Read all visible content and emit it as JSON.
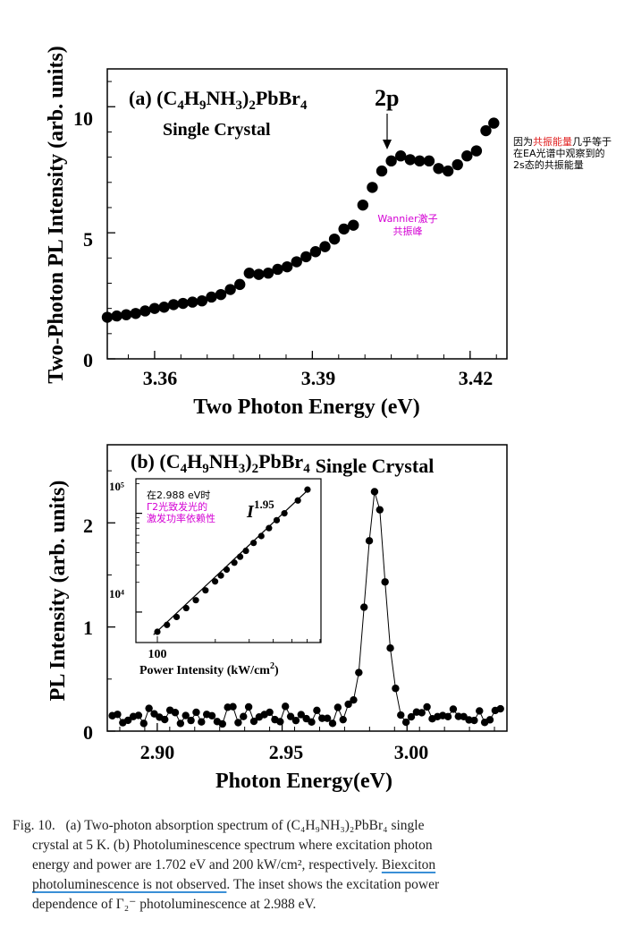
{
  "chart_data": [
    {
      "type": "scatter",
      "title": "(a) (C4H9NH3)2PbBr4",
      "subtitle": "Single Crystal",
      "xlabel": "Two Photon Energy (eV)",
      "ylabel": "Two-Photon PL Intensity (arb. units)",
      "xlim": [
        3.351,
        3.427
      ],
      "ylim": [
        0,
        11.5
      ],
      "xticks": [
        "3.36",
        "3.39",
        "3.42"
      ],
      "yticks": [
        "0",
        "5",
        "10"
      ],
      "peak_label": "2p",
      "annotation_right": [
        "因为",
        "共振能量",
        "几乎等于",
        "在EA光谱中观察到的",
        "2s态的共振能量"
      ],
      "annotation_center": [
        "Wannier激子",
        "共振峰"
      ],
      "x": [
        3.351,
        3.3528,
        3.3546,
        3.3564,
        3.3582,
        3.36,
        3.3618,
        3.3636,
        3.3654,
        3.3672,
        3.369,
        3.3708,
        3.3726,
        3.3744,
        3.3762,
        3.378,
        3.3798,
        3.3816,
        3.3834,
        3.3852,
        3.387,
        3.3888,
        3.3906,
        3.3924,
        3.3942,
        3.396,
        3.3978,
        3.3996,
        3.4014,
        3.4032,
        3.405,
        3.4068,
        3.4086,
        3.4104,
        3.4122,
        3.414,
        3.4158,
        3.4176,
        3.4194,
        3.4212,
        3.423,
        3.4245
      ],
      "y": [
        1.65,
        1.7,
        1.75,
        1.8,
        1.9,
        2.0,
        2.05,
        2.15,
        2.2,
        2.25,
        2.3,
        2.45,
        2.55,
        2.75,
        2.95,
        3.4,
        3.35,
        3.4,
        3.55,
        3.65,
        3.85,
        4.05,
        4.25,
        4.45,
        4.75,
        5.15,
        5.3,
        6.1,
        6.8,
        7.45,
        7.85,
        8.05,
        7.9,
        7.85,
        7.85,
        7.55,
        7.45,
        7.7,
        8.05,
        8.25,
        9.05,
        9.35
      ],
      "series": [
        {
          "name": "",
          "values": []
        }
      ]
    },
    {
      "type": "line",
      "title": "(b) (C4H9NH3)2PbBr4 Single Crystal",
      "xlabel": "Photon Energy(eV)",
      "ylabel": "PL Intensity (arb. units)",
      "xlim": [
        2.88,
        3.04
      ],
      "ylim": [
        0,
        2.75
      ],
      "xticks": [
        "2.90",
        "2.95",
        "3.00"
      ],
      "yticks": [
        "0",
        "1",
        "2"
      ],
      "x": [
        2.88,
        2.89,
        2.9,
        2.91,
        2.92,
        2.93,
        2.94,
        2.95,
        2.96,
        2.965,
        2.97,
        2.975,
        2.978,
        2.98,
        2.982,
        2.984,
        2.986,
        2.988,
        2.99,
        2.992,
        2.994,
        2.996,
        2.998,
        3.0,
        3.005,
        3.01,
        3.02,
        3.03,
        3.04
      ],
      "y": [
        0.15,
        0.18,
        0.12,
        0.2,
        0.1,
        0.2,
        0.15,
        0.2,
        0.18,
        0.25,
        0.3,
        0.42,
        0.6,
        0.85,
        1.2,
        1.7,
        2.1,
        2.15,
        2.05,
        1.6,
        1.15,
        0.75,
        0.45,
        0.32,
        0.2,
        0.18,
        0.15,
        0.2,
        0.12
      ],
      "inset": {
        "type": "scatter",
        "xlabel": "Power Intensity (kW/cm2)",
        "y_ticks": [
          "10⁴",
          "10⁵"
        ],
        "x_ticks": [
          "100"
        ],
        "slope_label": "I",
        "slope_exp": "1.95",
        "annotation": [
          "在2.988 eV时",
          "Γ2光致发光的",
          "激发功率依赖性"
        ],
        "log_x": [
          2.0,
          2.05,
          2.1,
          2.15,
          2.2,
          2.25,
          2.3,
          2.33,
          2.36,
          2.4,
          2.43,
          2.46,
          2.5,
          2.54,
          2.58,
          2.62,
          2.66,
          2.73,
          2.78
        ],
        "log_y": [
          3.8,
          3.87,
          3.95,
          4.04,
          4.12,
          4.22,
          4.31,
          4.37,
          4.43,
          4.5,
          4.56,
          4.62,
          4.7,
          4.77,
          4.85,
          4.93,
          5.0,
          5.13,
          5.24
        ]
      }
    }
  ],
  "caption": {
    "fig": "Fig. 10.",
    "part1": "(a) Two-photon absorption spectrum of (C₄H₉NH₃)₂PbBr₄ single",
    "part2": "crystal at 5 K. (b) Photoluminescence spectrum where excitation photon",
    "part3": "energy and power are 1.702 eV and 200 kW/cm², respectively.",
    "underlined1": "Biexciton",
    "underlined2": "photoluminescence is not observed",
    "part4": ". The inset shows the excitation power",
    "part5": "dependence of Γ₂⁻ photoluminescence at 2.988 eV."
  }
}
